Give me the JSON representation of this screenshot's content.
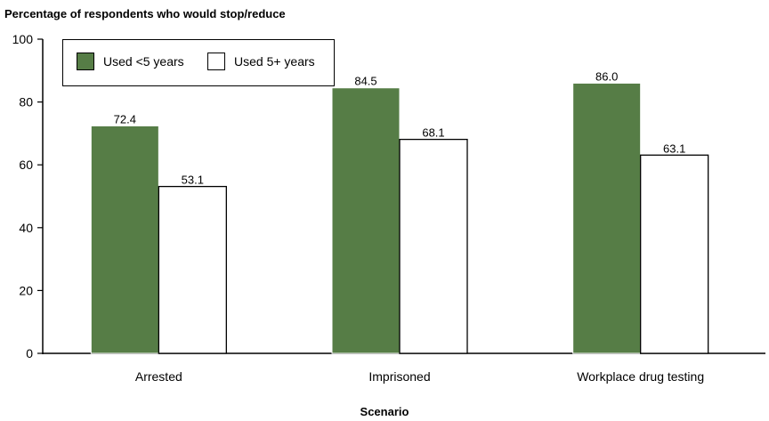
{
  "chart_data": {
    "type": "bar",
    "title": "",
    "ylabel": "Percentage of respondents who would stop/reduce",
    "xlabel": "Scenario",
    "categories": [
      "Arrested",
      "Imprisoned",
      "Workplace drug testing"
    ],
    "series": [
      {
        "name": "Used <5 years",
        "values": [
          72.4,
          84.5,
          86.0
        ],
        "labels": [
          "72.4",
          "84.5",
          "86.0"
        ],
        "color": "#567d46"
      },
      {
        "name": "Used 5+ years",
        "values": [
          53.1,
          68.1,
          63.1
        ],
        "labels": [
          "53.1",
          "68.1",
          "63.1"
        ],
        "color": "#ffffff"
      }
    ],
    "ylim": [
      0,
      100
    ],
    "yticks": [
      0,
      20,
      40,
      60,
      80,
      100
    ],
    "grid": false,
    "legend": "top-left"
  }
}
